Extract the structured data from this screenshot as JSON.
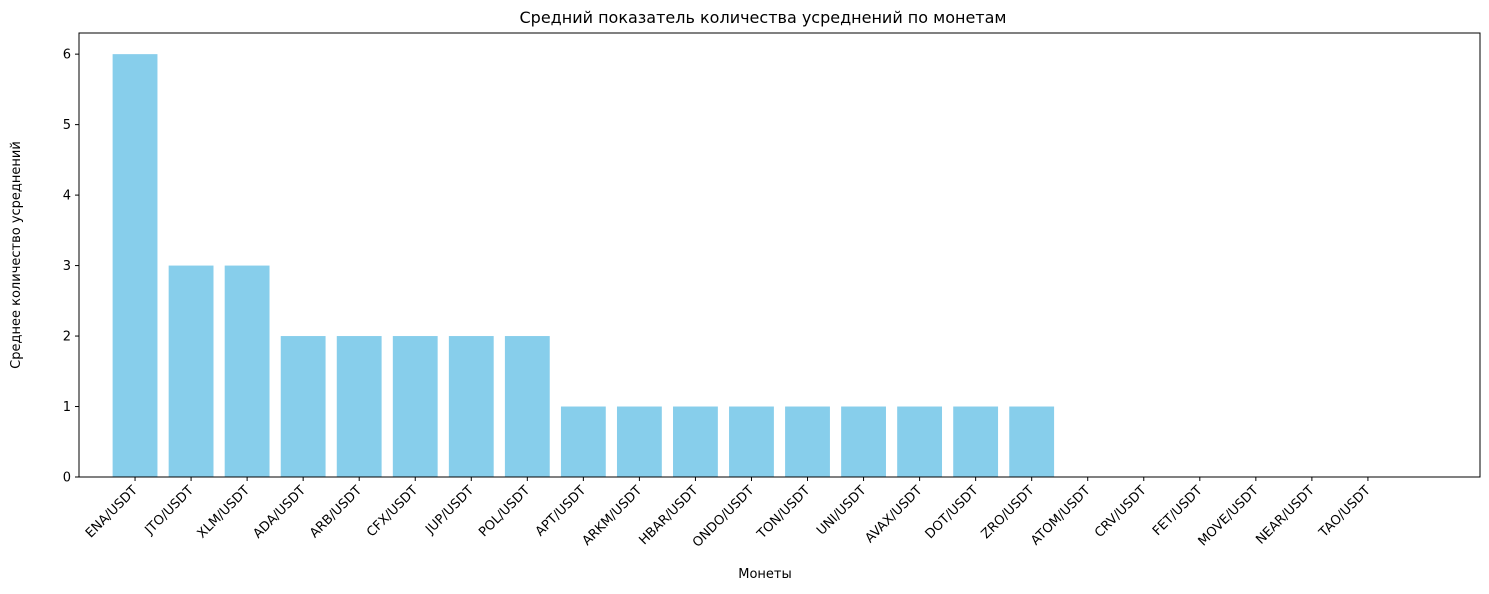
{
  "chart_data": {
    "type": "bar",
    "title": "Средний показатель количества усреднений по монетам",
    "xlabel": "Монеты",
    "ylabel": "Среднее количество усреднений",
    "categories": [
      "ENA/USDT",
      "JTO/USDT",
      "XLM/USDT",
      "ADA/USDT",
      "ARB/USDT",
      "CFX/USDT",
      "JUP/USDT",
      "POL/USDT",
      "APT/USDT",
      "ARKM/USDT",
      "HBAR/USDT",
      "ONDO/USDT",
      "TON/USDT",
      "UNI/USDT",
      "AVAX/USDT",
      "DOT/USDT",
      "ZRO/USDT",
      "ATOM/USDT",
      "CRV/USDT",
      "FET/USDT",
      "MOVE/USDT",
      "NEAR/USDT",
      "TAO/USDT"
    ],
    "values": [
      6,
      3,
      3,
      2,
      2,
      2,
      2,
      2,
      1,
      1,
      1,
      1,
      1,
      1,
      1,
      1,
      1,
      0,
      0,
      0,
      0,
      0,
      0
    ],
    "ylim": [
      0,
      6.3
    ],
    "yticks": [
      "0",
      "1",
      "2",
      "3",
      "4",
      "5",
      "6"
    ],
    "bar_color": "#87ceeb",
    "grid": false,
    "legend": "none"
  }
}
